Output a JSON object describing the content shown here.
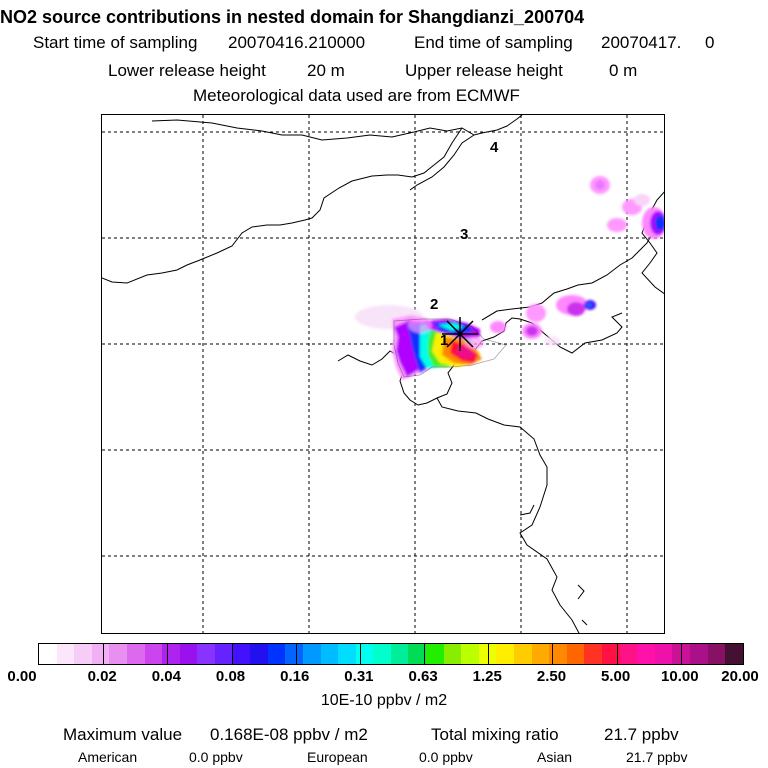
{
  "header": {
    "title": "NO2 source contributions in nested domain for Shangdianzi_200704",
    "start_label": "Start time of sampling",
    "start_value": "20070416.210000",
    "end_label": "End time of sampling",
    "end_value": "20070417.     0",
    "lower_label": "Lower release height",
    "lower_value": "20 m",
    "upper_label": "Upper release height",
    "upper_value": "0 m",
    "met_line": "Meteorological data used are from ECMWF"
  },
  "map": {
    "markers": [
      "1",
      "2",
      "3",
      "4"
    ],
    "receptor_icon": "asterisk-receptor-icon",
    "plume_colors": {
      "edge": "#ff88ff",
      "purple": "#aa00ff",
      "blue": "#0044ff",
      "cyan": "#00ffee",
      "green": "#22ee22",
      "yellow": "#ffee00",
      "orange": "#ff8800",
      "red": "#ff1133",
      "magenta": "#ee1188"
    }
  },
  "colorbar": {
    "colors": [
      "#ffffff",
      "#fbe6fb",
      "#f6cdf6",
      "#f0b0f3",
      "#e890f0",
      "#dd6aee",
      "#cc44ee",
      "#b022ee",
      "#9911ee",
      "#8833ff",
      "#6622ff",
      "#4411ff",
      "#2211ee",
      "#0033ff",
      "#0066ff",
      "#0099ff",
      "#00bbff",
      "#00ddff",
      "#00ffee",
      "#00ffcc",
      "#00ee99",
      "#00dd55",
      "#22ee00",
      "#88ee00",
      "#bbff00",
      "#eeff00",
      "#ffee00",
      "#ffcc00",
      "#ffaa00",
      "#ff8800",
      "#ff6600",
      "#ff3322",
      "#ff1144",
      "#ff1188",
      "#ff11aa",
      "#ee11aa",
      "#cc1199",
      "#aa1188",
      "#881166",
      "#441133"
    ],
    "tick_labels": [
      "0.00",
      "0.02",
      "0.04",
      "0.08",
      "0.16",
      "0.31",
      "0.63",
      "1.25",
      "2.50",
      "5.00",
      "10.00",
      "20.00"
    ],
    "unit": "10E-10 ppbv / m2"
  },
  "footer": {
    "max_label": "Maximum value",
    "max_value": "0.168E-08 ppbv / m2",
    "total_label": "Total mixing ratio",
    "total_value": "21.7 ppbv",
    "american_label": "American",
    "american_value": "0.0 ppbv",
    "european_label": "European",
    "european_value": "0.0 ppbv",
    "asian_label": "Asian",
    "asian_value": "21.7 ppbv"
  }
}
